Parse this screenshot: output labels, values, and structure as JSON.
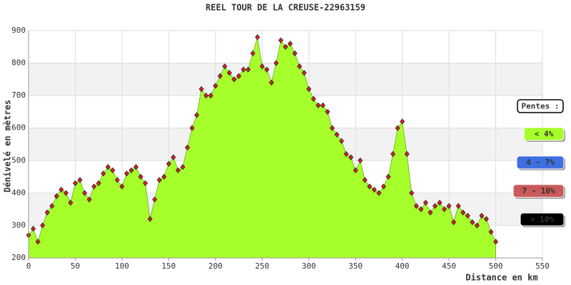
{
  "chart_data": {
    "type": "area",
    "title": "REEL TOUR DE LA CREUSE-22963159",
    "x_label": "Distance en km",
    "y_label": "Dénivelé en mètres",
    "x": [
      0,
      5,
      10,
      15,
      20,
      25,
      30,
      35,
      40,
      45,
      50,
      55,
      60,
      65,
      70,
      75,
      80,
      85,
      90,
      95,
      100,
      105,
      110,
      115,
      120,
      125,
      130,
      135,
      140,
      145,
      150,
      155,
      160,
      165,
      170,
      175,
      180,
      185,
      190,
      195,
      200,
      205,
      210,
      215,
      220,
      225,
      230,
      235,
      240,
      245,
      250,
      255,
      260,
      265,
      270,
      275,
      280,
      285,
      290,
      295,
      300,
      305,
      310,
      315,
      320,
      325,
      330,
      335,
      340,
      345,
      350,
      355,
      360,
      365,
      370,
      375,
      380,
      385,
      390,
      395,
      400,
      405,
      410,
      415,
      420,
      425,
      430,
      435,
      440,
      445,
      450,
      455,
      460,
      465,
      470,
      475,
      480,
      485,
      490,
      495,
      500
    ],
    "values": [
      270,
      290,
      250,
      300,
      340,
      360,
      390,
      410,
      400,
      370,
      430,
      440,
      400,
      380,
      420,
      430,
      460,
      480,
      470,
      440,
      420,
      460,
      470,
      480,
      450,
      430,
      320,
      380,
      440,
      450,
      490,
      510,
      470,
      480,
      540,
      600,
      640,
      720,
      700,
      700,
      730,
      760,
      790,
      770,
      750,
      760,
      780,
      780,
      830,
      880,
      790,
      780,
      740,
      800,
      870,
      850,
      860,
      830,
      790,
      770,
      720,
      690,
      670,
      670,
      650,
      600,
      580,
      560,
      520,
      510,
      470,
      500,
      440,
      420,
      410,
      400,
      420,
      450,
      520,
      600,
      620,
      520,
      400,
      360,
      350,
      370,
      340,
      360,
      370,
      350,
      360,
      310,
      360,
      340,
      330,
      310,
      300,
      330,
      320,
      280,
      250
    ],
    "color": "#a6ff2a",
    "marker_color": "#e02020",
    "xlim": [
      0,
      550
    ],
    "xticks": [
      0,
      50,
      100,
      150,
      200,
      250,
      300,
      350,
      400,
      450,
      500,
      550
    ],
    "ylim": [
      200,
      900
    ],
    "yticks": [
      200,
      300,
      400,
      500,
      600,
      700,
      800,
      900
    ],
    "grid": true,
    "legend": {
      "title": "Pentes :",
      "items": [
        {
          "label": "< 4%",
          "color": "#a6ff2a"
        },
        {
          "label": "4 - 7%",
          "color": "#3d6fe0"
        },
        {
          "label": "7 - 10%",
          "color": "#c85a5a"
        },
        {
          "label": "> 10%",
          "color": "#000000"
        }
      ]
    }
  }
}
